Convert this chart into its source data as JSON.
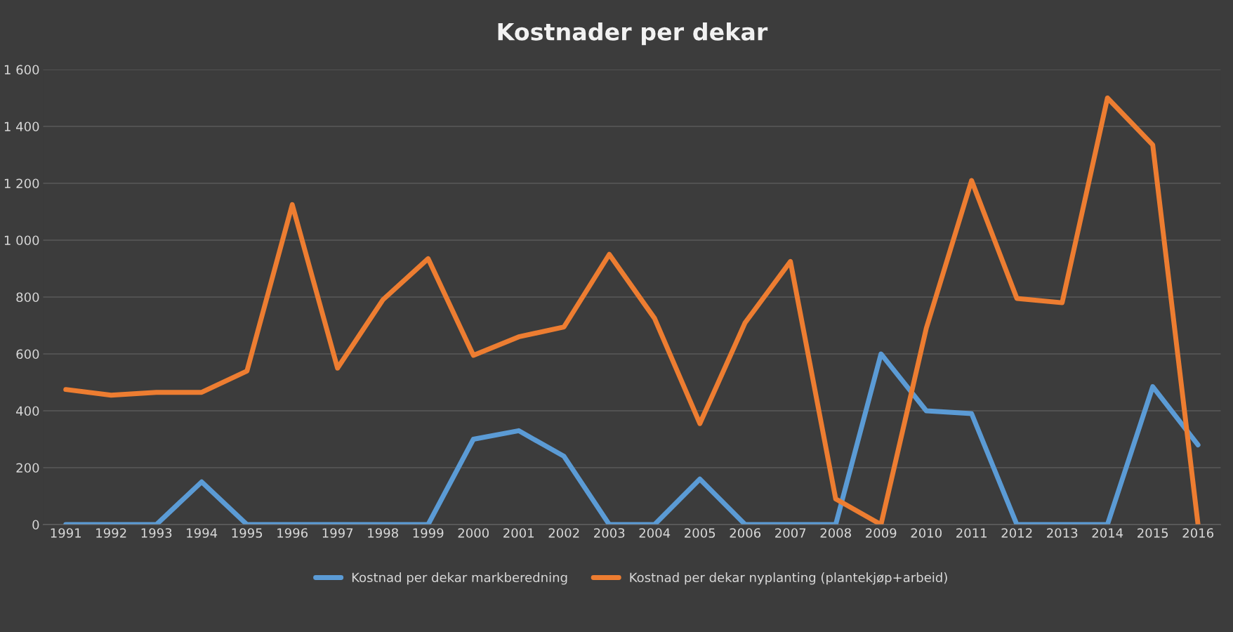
{
  "chart_data": {
    "type": "line",
    "title": "Kostnader per dekar",
    "categories": [
      "1991",
      "1992",
      "1993",
      "1994",
      "1995",
      "1996",
      "1997",
      "1998",
      "1999",
      "2000",
      "2001",
      "2002",
      "2003",
      "2004",
      "2005",
      "2006",
      "2007",
      "2008",
      "2009",
      "2010",
      "2011",
      "2012",
      "2013",
      "2014",
      "2015",
      "2016"
    ],
    "series": [
      {
        "name": "Kostnad per dekar markberedning",
        "color": "#5b9bd5",
        "values": [
          0,
          0,
          0,
          150,
          0,
          0,
          0,
          0,
          0,
          300,
          330,
          240,
          0,
          0,
          160,
          0,
          0,
          0,
          600,
          400,
          390,
          0,
          0,
          0,
          485,
          280
        ]
      },
      {
        "name": "Kostnad per dekar nyplanting (plantekjøp+arbeid)",
        "color": "#ed7d31",
        "values": [
          475,
          455,
          465,
          465,
          540,
          1125,
          550,
          790,
          935,
          595,
          660,
          695,
          950,
          725,
          355,
          710,
          925,
          90,
          0,
          690,
          1210,
          795,
          780,
          1500,
          1335,
          0
        ]
      }
    ],
    "ylim": [
      0,
      1600
    ],
    "yticks": [
      0,
      200,
      400,
      600,
      800,
      {
        "value": 1000,
        "label": "1 000"
      },
      {
        "value": 1200,
        "label": "1 200"
      },
      {
        "value": 1400,
        "label": "1 400"
      },
      {
        "value": 1600,
        "label": "1 600"
      }
    ],
    "grid": "y",
    "legend": "bottom",
    "marker": "none",
    "line_style": "solid"
  }
}
